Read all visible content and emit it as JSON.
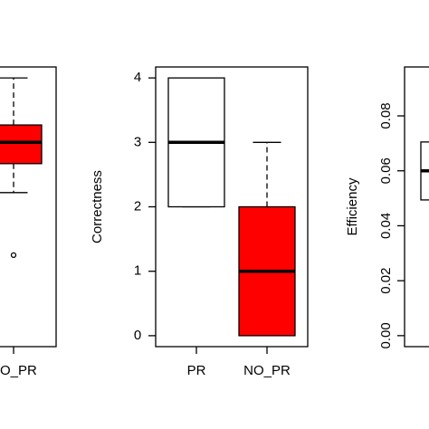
{
  "chart_data": [
    {
      "type": "box",
      "categories": [
        "NO_PR"
      ],
      "boxes": [
        {
          "q1": 2.67,
          "median": 3.0,
          "q3": 3.27,
          "whislo": 2.22,
          "whishi": 4.0,
          "outliers": [
            1.25
          ],
          "color": "#ff0000"
        }
      ],
      "ylim": [
        -0.17,
        4.17
      ]
    },
    {
      "type": "box",
      "ylabel": "Correctness",
      "categories": [
        "PR",
        "NO_PR"
      ],
      "boxes": [
        {
          "q1": 2,
          "median": 3,
          "q3": 4,
          "whislo": 2,
          "whishi": 4,
          "outliers": [],
          "color": "#ffffff"
        },
        {
          "q1": 0,
          "median": 1,
          "q3": 2,
          "whislo": 0,
          "whishi": 3,
          "outliers": [],
          "color": "#ff0000"
        }
      ],
      "ylim": [
        -0.17,
        4.17
      ],
      "yticks": [
        0,
        1,
        2,
        3,
        4
      ]
    },
    {
      "type": "box",
      "ylabel": "Efficiency",
      "categories": [
        null
      ],
      "boxes": [
        {
          "q1": 0.0494,
          "median": 0.06,
          "q3": 0.0705,
          "whislo": null,
          "whishi": null,
          "outliers": [],
          "color": "#ffffff"
        }
      ],
      "ylim": [
        -0.004,
        0.0978
      ],
      "yticks": [
        {
          "value": 0,
          "label": "0.00"
        },
        {
          "value": 0.02,
          "label": "0.02"
        },
        {
          "value": 0.04,
          "label": "0.04"
        },
        {
          "value": 0.06,
          "label": "0.06"
        },
        {
          "value": 0.08,
          "label": "0.08"
        }
      ]
    }
  ]
}
